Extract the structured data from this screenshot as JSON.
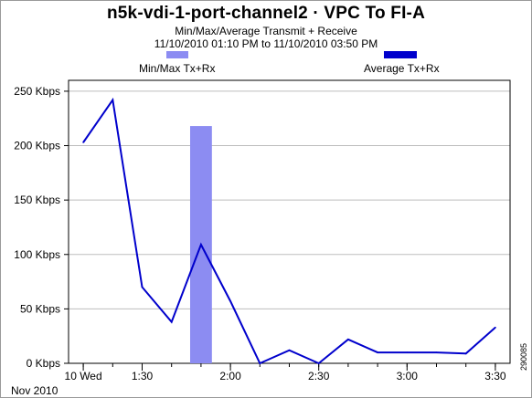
{
  "header": {
    "title": "n5k-vdi-1-port-channel2 · VPC To FI-A",
    "subtitle": "Min/Max/Average Transmit + Receive",
    "range": "11/10/2010 01:10 PM to 11/10/2010 03:50 PM"
  },
  "legend": {
    "minmax_label": "Min/Max Tx+Rx",
    "average_label": "Average Tx+Rx"
  },
  "figure_id": "290085",
  "colors": {
    "average_line": "#0000cc",
    "minmax_bar": "#8c8cf2",
    "grid": "#bdbdbd"
  },
  "chart_data": {
    "type": "line",
    "title": "n5k-vdi-1-port-channel2 · VPC To FI-A",
    "subtitle": "Min/Max/Average Transmit + Receive",
    "xlabel": "",
    "ylabel": "",
    "date_label": "Nov 2010",
    "x_unit": "minutes after 13:00",
    "xlim": [
      5,
      155
    ],
    "ylim": [
      0,
      260
    ],
    "y_unit": "Kbps",
    "yticks": [
      {
        "value": 0,
        "label": "0 Kbps"
      },
      {
        "value": 50,
        "label": "50 Kbps"
      },
      {
        "value": 100,
        "label": "100 Kbps"
      },
      {
        "value": 150,
        "label": "150 Kbps"
      },
      {
        "value": 200,
        "label": "200 Kbps"
      },
      {
        "value": 250,
        "label": "250 Kbps"
      }
    ],
    "xticks": [
      {
        "value": 10,
        "label": "10 Wed"
      },
      {
        "value": 30,
        "label": "1:30"
      },
      {
        "value": 60,
        "label": "2:00"
      },
      {
        "value": 90,
        "label": "2:30"
      },
      {
        "value": 120,
        "label": "3:00"
      },
      {
        "value": 150,
        "label": "3:30"
      }
    ],
    "grid": true,
    "series": [
      {
        "name": "Average Tx+Rx",
        "x": [
          10,
          20,
          30,
          40,
          50,
          60,
          70,
          80,
          90,
          100,
          110,
          120,
          130,
          140,
          150
        ],
        "y": [
          203,
          242,
          70,
          38,
          109,
          57,
          0,
          12,
          0,
          22,
          10,
          10,
          10,
          9,
          33
        ]
      }
    ],
    "minmax_bars": [
      {
        "name": "Min/Max Tx+Rx",
        "x_start": 46.3,
        "x_end": 53.7,
        "min": 0,
        "max": 218
      }
    ]
  }
}
